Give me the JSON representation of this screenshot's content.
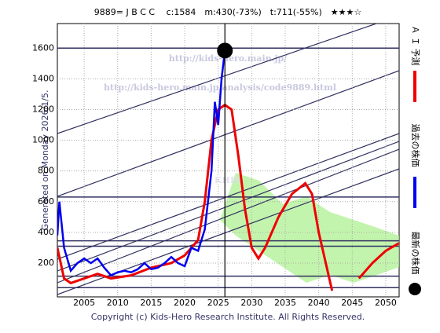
{
  "chart_data": {
    "type": "line",
    "title": "9889= J B C C　 c:1584　m:430(-73%)　t:711(-55%)　★★★☆",
    "side_label": "Generated on Monday 2026/1/5.",
    "footer": "Copyright (c) Kids-Hero Research Institute. All Rights Reserved.",
    "watermarks": [
      "http://kids-hero.main.jp/",
      "http://kids-hero.main.jp/analysis/code9889.html",
      "KHRI"
    ],
    "xlim": [
      2001,
      2052
    ],
    "ylim": [
      -20,
      1760
    ],
    "xticks": [
      2005,
      2010,
      2015,
      2020,
      2025,
      2030,
      2035,
      2040,
      2045,
      2050
    ],
    "yticks": [
      200,
      400,
      600,
      800,
      1000,
      1200,
      1400,
      1600
    ],
    "grid": true,
    "levels": [
      1600,
      630,
      345,
      310,
      115,
      40
    ],
    "series": [
      {
        "name": "過去の株価",
        "color": "#0000ee",
        "x": [
          2001,
          2001.3,
          2002,
          2003,
          2004,
          2005,
          2006,
          2007,
          2008,
          2009,
          2010,
          2011,
          2012,
          2013,
          2014,
          2015,
          2016,
          2017,
          2018,
          2019,
          2020,
          2021,
          2022,
          2023,
          2024,
          2024.5,
          2025,
          2025.5,
          2026
        ],
        "values": [
          380,
          600,
          300,
          150,
          200,
          230,
          200,
          230,
          170,
          120,
          140,
          150,
          140,
          160,
          200,
          160,
          170,
          200,
          240,
          200,
          180,
          300,
          280,
          420,
          800,
          1250,
          1100,
          1400,
          1584
        ]
      },
      {
        "name": "Ａ Ｉ 予測",
        "color": "#ee0000",
        "x": [
          2001,
          2002,
          2003,
          2005,
          2007,
          2009,
          2012,
          2015,
          2018,
          2020,
          2022,
          2023,
          2024,
          2025,
          2026,
          2027,
          2028,
          2029,
          2030,
          2031,
          2032,
          2034,
          2036,
          2038,
          2039,
          2040,
          2042,
          2043,
          2046,
          2048,
          2050,
          2052
        ],
        "values": [
          300,
          100,
          70,
          100,
          130,
          100,
          120,
          170,
          200,
          250,
          350,
          600,
          1000,
          1200,
          1230,
          1200,
          900,
          550,
          300,
          230,
          300,
          500,
          650,
          720,
          650,
          400,
          20,
          null,
          100,
          200,
          280,
          330
        ]
      },
      {
        "name": "最新の株価",
        "color": "#000000",
        "x": [
          2026
        ],
        "values": [
          1584
        ]
      }
    ]
  }
}
